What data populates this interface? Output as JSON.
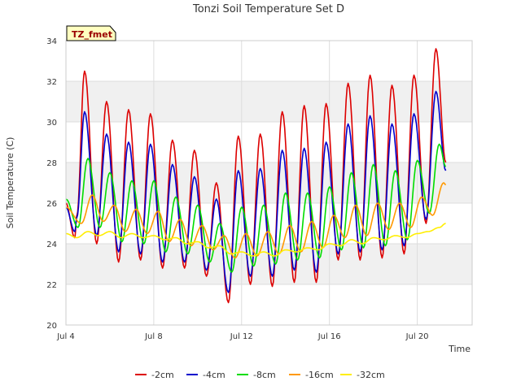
{
  "chart_data": {
    "type": "line",
    "title": "Tonzi Soil Temperature Set D",
    "xlabel": "Time",
    "ylabel": "Soil Temperature (C)",
    "annotation": "TZ_fmet",
    "xlim": [
      4,
      22.5
    ],
    "ylim": [
      20,
      34
    ],
    "xticks": [
      {
        "value": 4,
        "label": "Jul 4"
      },
      {
        "value": 8,
        "label": "Jul 8"
      },
      {
        "value": 12,
        "label": "Jul 12"
      },
      {
        "value": 16,
        "label": "Jul 16"
      },
      {
        "value": 20,
        "label": "Jul 20"
      }
    ],
    "yticks": [
      20,
      22,
      24,
      26,
      28,
      30,
      32,
      34
    ],
    "grid": true,
    "legend_position": "bottom",
    "colors": {
      "-2cm": "#dd0000",
      "-4cm": "#0000cc",
      "-8cm": "#00dd00",
      "-16cm": "#ff9900",
      "-32cm": "#ffee00",
      "band": "#f0f0f0",
      "grid": "#dddddd",
      "annotation_bg": "#ffffc0",
      "annotation_text": "#990000"
    },
    "series": [
      {
        "name": "-2cm",
        "color": "#dd0000",
        "peaks": [
          [
            4.5,
            25.4
          ],
          [
            4.85,
            32.5
          ],
          [
            5.85,
            31.0
          ],
          [
            6.85,
            30.6
          ],
          [
            7.85,
            30.4
          ],
          [
            8.85,
            29.1
          ],
          [
            9.85,
            28.6
          ],
          [
            10.85,
            27.0
          ],
          [
            11.85,
            29.3
          ],
          [
            12.85,
            29.4
          ],
          [
            13.85,
            30.5
          ],
          [
            14.85,
            30.8
          ],
          [
            15.85,
            30.9
          ],
          [
            16.85,
            31.9
          ],
          [
            17.85,
            32.3
          ],
          [
            18.85,
            31.8
          ],
          [
            19.85,
            32.3
          ],
          [
            20.85,
            33.6
          ],
          [
            21.3,
            28.0
          ]
        ],
        "troughs": [
          [
            4.0,
            26.0
          ],
          [
            4.4,
            24.3
          ],
          [
            5.4,
            24.0
          ],
          [
            6.4,
            23.1
          ],
          [
            7.4,
            23.2
          ],
          [
            8.4,
            22.8
          ],
          [
            9.4,
            22.8
          ],
          [
            10.4,
            22.4
          ],
          [
            11.4,
            21.1
          ],
          [
            12.4,
            22.0
          ],
          [
            13.4,
            21.9
          ],
          [
            14.4,
            22.1
          ],
          [
            15.4,
            22.1
          ],
          [
            16.4,
            23.2
          ],
          [
            17.4,
            23.2
          ],
          [
            18.4,
            23.3
          ],
          [
            19.4,
            23.5
          ],
          [
            20.4,
            25.0
          ]
        ]
      },
      {
        "name": "-4cm",
        "color": "#0000cc",
        "peaks": [
          [
            4.5,
            25.3
          ],
          [
            4.85,
            30.5
          ],
          [
            5.85,
            29.4
          ],
          [
            6.85,
            29.0
          ],
          [
            7.85,
            28.9
          ],
          [
            8.85,
            27.9
          ],
          [
            9.85,
            27.3
          ],
          [
            10.85,
            26.2
          ],
          [
            11.85,
            27.6
          ],
          [
            12.85,
            27.7
          ],
          [
            13.85,
            28.6
          ],
          [
            14.85,
            28.7
          ],
          [
            15.85,
            29.0
          ],
          [
            16.85,
            29.9
          ],
          [
            17.85,
            30.3
          ],
          [
            18.85,
            29.9
          ],
          [
            19.85,
            30.4
          ],
          [
            20.85,
            31.5
          ],
          [
            21.3,
            27.6
          ]
        ],
        "troughs": [
          [
            4.0,
            25.8
          ],
          [
            4.4,
            24.6
          ],
          [
            5.4,
            24.4
          ],
          [
            6.4,
            23.6
          ],
          [
            7.4,
            23.5
          ],
          [
            8.4,
            23.1
          ],
          [
            9.4,
            23.1
          ],
          [
            10.4,
            22.7
          ],
          [
            11.4,
            21.6
          ],
          [
            12.4,
            22.4
          ],
          [
            13.4,
            22.4
          ],
          [
            14.4,
            22.7
          ],
          [
            15.4,
            22.6
          ],
          [
            16.4,
            23.5
          ],
          [
            17.4,
            23.6
          ],
          [
            18.4,
            23.7
          ],
          [
            19.4,
            23.9
          ],
          [
            20.4,
            25.2
          ]
        ]
      },
      {
        "name": "-8cm",
        "color": "#00dd00",
        "peaks": [
          [
            4.0,
            26.2
          ],
          [
            5.0,
            28.2
          ],
          [
            6.0,
            27.5
          ],
          [
            7.0,
            27.1
          ],
          [
            8.0,
            27.1
          ],
          [
            9.0,
            26.3
          ],
          [
            10.0,
            25.9
          ],
          [
            11.0,
            25.0
          ],
          [
            12.0,
            25.8
          ],
          [
            13.0,
            25.9
          ],
          [
            14.0,
            26.5
          ],
          [
            15.0,
            26.5
          ],
          [
            16.0,
            26.8
          ],
          [
            17.0,
            27.5
          ],
          [
            18.0,
            27.9
          ],
          [
            19.0,
            27.6
          ],
          [
            20.0,
            28.1
          ],
          [
            21.0,
            28.9
          ],
          [
            21.3,
            27.8
          ]
        ],
        "troughs": [
          [
            4.55,
            24.8
          ],
          [
            5.55,
            24.8
          ],
          [
            6.55,
            24.1
          ],
          [
            7.55,
            24.0
          ],
          [
            8.55,
            23.6
          ],
          [
            9.55,
            23.5
          ],
          [
            10.55,
            23.1
          ],
          [
            11.55,
            22.6
          ],
          [
            12.55,
            22.9
          ],
          [
            13.55,
            23.0
          ],
          [
            14.55,
            23.2
          ],
          [
            15.55,
            23.3
          ],
          [
            16.55,
            23.7
          ],
          [
            17.55,
            23.8
          ],
          [
            18.55,
            23.9
          ],
          [
            19.55,
            24.2
          ],
          [
            20.55,
            25.5
          ]
        ]
      },
      {
        "name": "-16cm",
        "color": "#ff9900",
        "peaks": [
          [
            4.0,
            25.8
          ],
          [
            5.2,
            26.4
          ],
          [
            6.2,
            25.9
          ],
          [
            7.2,
            25.7
          ],
          [
            8.2,
            25.6
          ],
          [
            9.2,
            25.2
          ],
          [
            10.2,
            24.9
          ],
          [
            11.2,
            24.4
          ],
          [
            12.2,
            24.5
          ],
          [
            13.2,
            24.6
          ],
          [
            14.2,
            24.9
          ],
          [
            15.2,
            25.1
          ],
          [
            16.2,
            25.4
          ],
          [
            17.2,
            25.9
          ],
          [
            18.2,
            26.0
          ],
          [
            19.2,
            26.0
          ],
          [
            20.2,
            26.3
          ],
          [
            21.2,
            27.0
          ],
          [
            21.3,
            26.9
          ]
        ],
        "troughs": [
          [
            4.7,
            25.0
          ],
          [
            5.7,
            25.1
          ],
          [
            6.7,
            24.6
          ],
          [
            7.7,
            24.5
          ],
          [
            8.7,
            24.1
          ],
          [
            9.7,
            23.9
          ],
          [
            10.7,
            23.7
          ],
          [
            11.7,
            23.3
          ],
          [
            12.7,
            23.4
          ],
          [
            13.7,
            23.5
          ],
          [
            14.7,
            23.6
          ],
          [
            15.7,
            23.8
          ],
          [
            16.7,
            24.3
          ],
          [
            17.7,
            24.4
          ],
          [
            18.7,
            24.7
          ],
          [
            19.7,
            24.8
          ],
          [
            20.7,
            25.4
          ]
        ]
      },
      {
        "name": "-32cm",
        "color": "#ffee00",
        "peaks": [
          [
            4.0,
            24.5
          ],
          [
            5.0,
            24.6
          ],
          [
            6.0,
            24.6
          ],
          [
            7.0,
            24.5
          ],
          [
            8.0,
            24.4
          ],
          [
            9.0,
            24.3
          ],
          [
            10.0,
            24.1
          ],
          [
            11.0,
            23.9
          ],
          [
            12.0,
            23.6
          ],
          [
            13.0,
            23.6
          ],
          [
            14.0,
            23.7
          ],
          [
            15.0,
            23.8
          ],
          [
            16.0,
            24.0
          ],
          [
            17.0,
            24.2
          ],
          [
            18.0,
            24.3
          ],
          [
            19.0,
            24.4
          ],
          [
            20.0,
            24.5
          ],
          [
            21.0,
            24.8
          ],
          [
            21.3,
            25.0
          ]
        ],
        "troughs": [
          [
            4.5,
            24.3
          ],
          [
            5.5,
            24.4
          ],
          [
            6.5,
            24.3
          ],
          [
            7.5,
            24.3
          ],
          [
            8.5,
            24.2
          ],
          [
            9.5,
            24.0
          ],
          [
            10.5,
            23.8
          ],
          [
            11.5,
            23.5
          ],
          [
            12.5,
            23.4
          ],
          [
            13.5,
            23.4
          ],
          [
            14.5,
            23.6
          ],
          [
            15.5,
            23.7
          ],
          [
            16.5,
            23.9
          ],
          [
            17.5,
            24.0
          ],
          [
            18.5,
            24.2
          ],
          [
            19.5,
            24.3
          ],
          [
            20.5,
            24.6
          ]
        ]
      }
    ]
  }
}
